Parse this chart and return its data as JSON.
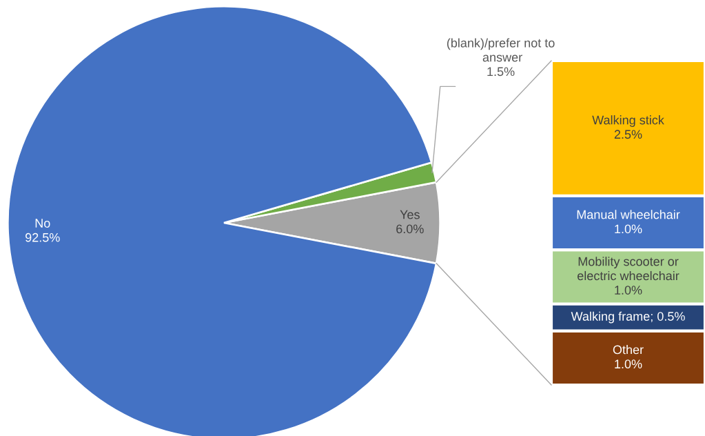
{
  "chart_data": [
    {
      "type": "pie",
      "categories": [
        "Yes",
        "(blank)/prefer not to answer",
        "No"
      ],
      "values": [
        6.0,
        1.5,
        92.5
      ],
      "colors": [
        "#a5a5a5",
        "#70ad47",
        "#4472c4"
      ],
      "value_labels": [
        "6.0%",
        "1.5%",
        "92.5%"
      ]
    },
    {
      "type": "bar",
      "stacked": true,
      "categories": [
        null
      ],
      "tick_labels": false,
      "legend": false,
      "series": [
        {
          "name": "Other",
          "color": "#843c0c",
          "values": [
            1.0
          ],
          "value_labels": [
            "1.0%"
          ]
        },
        {
          "color": "#264478",
          "values": [
            0.5
          ],
          "value_labels": [
            "Walking frame; 0.5%"
          ]
        },
        {
          "name": "Mobility scooter or electric wheelchair",
          "color": "#a9d18e",
          "values": [
            1.0
          ],
          "value_labels": [
            "1.0%"
          ]
        },
        {
          "name": "Manual wheelchair",
          "color": "#4472c4",
          "values": [
            1.0
          ],
          "value_labels": [
            "1.0%"
          ]
        },
        {
          "name": "Walking stick",
          "color": "#ffc000",
          "values": [
            2.5
          ],
          "value_labels": [
            "2.5%"
          ]
        }
      ]
    }
  ]
}
